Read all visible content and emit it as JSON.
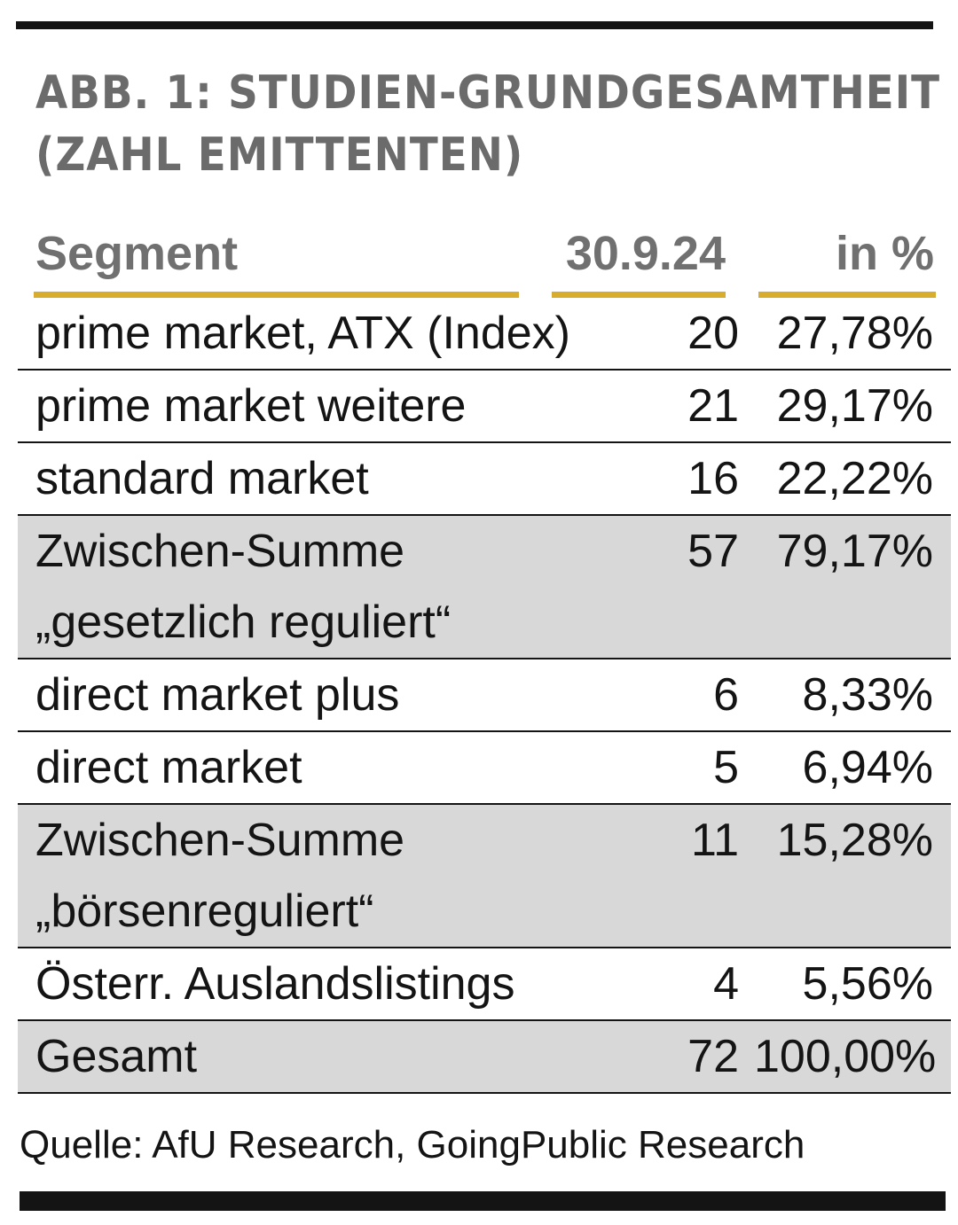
{
  "title": {
    "line1": "ABB. 1: STUDIEN-GRUNDGESAMTHEIT",
    "line2": "(ZAHL EMITTENTEN)"
  },
  "header": {
    "segment": "Segment",
    "date": "30.9.24",
    "percent": "in %"
  },
  "rows": [
    {
      "segment": "prime market, ATX (Index)",
      "segment2": "",
      "count": "20",
      "percent": "27,78%"
    },
    {
      "segment": "prime market weitere",
      "segment2": "",
      "count": "21",
      "percent": "29,17%"
    },
    {
      "segment": "standard market",
      "segment2": "",
      "count": "16",
      "percent": "22,22%"
    },
    {
      "segment": "Zwischen-Summe",
      "segment2": "„gesetzlich reguliert“",
      "count": "57",
      "percent": "79,17%"
    },
    {
      "segment": "direct market plus",
      "segment2": "",
      "count": "6",
      "percent": "8,33%"
    },
    {
      "segment": "direct market",
      "segment2": "",
      "count": "5",
      "percent": "6,94%"
    },
    {
      "segment": "Zwischen-Summe",
      "segment2": "„börsenreguliert“",
      "count": "11",
      "percent": "15,28%"
    },
    {
      "segment": "Österr. Auslandslistings",
      "segment2": "",
      "count": "4",
      "percent": "5,56%"
    },
    {
      "segment": "Gesamt",
      "segment2": "",
      "count": "72",
      "percent": "100,00%"
    }
  ],
  "source": "Quelle: AfU Research, GoingPublic Research",
  "colors": {
    "accent": "#d8ad2e",
    "shade": "#d8d8d8",
    "header_text": "#707070",
    "rule": "#141414"
  }
}
